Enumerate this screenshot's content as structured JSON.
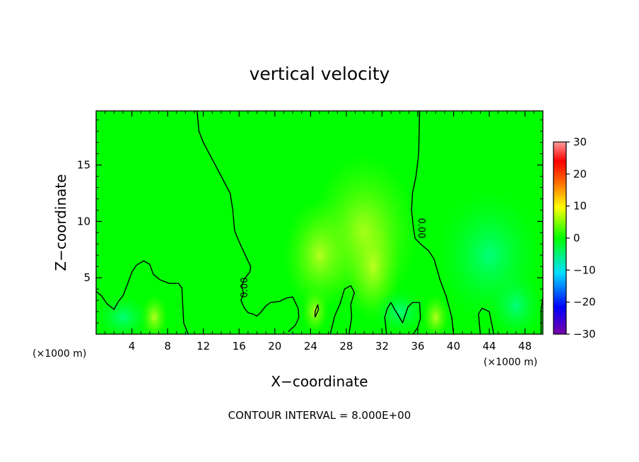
{
  "chart_data": {
    "type": "heatmap",
    "title": "vertical velocity",
    "xlabel": "X−coordinate",
    "ylabel": "Z−coordinate",
    "x_unit_left": "(×1000 m)",
    "x_unit_right": "(×1000 m)",
    "xlim": [
      0,
      50
    ],
    "ylim": [
      0,
      19.8
    ],
    "x_ticks": [
      4,
      8,
      12,
      16,
      20,
      24,
      28,
      32,
      36,
      40,
      44,
      48
    ],
    "y_ticks": [
      5,
      10,
      15
    ],
    "colorbar": {
      "range": [
        -30,
        30
      ],
      "ticks": [
        "30",
        "20",
        "10",
        "0",
        "−10",
        "−20",
        "−30"
      ],
      "colors": [
        "#7b00a8",
        "#0000ff",
        "#00e0ff",
        "#00ff00",
        "#ffff00",
        "#ff6000",
        "#ff0000",
        "#ff9090"
      ]
    },
    "background_color": "#00ff00",
    "contour_label": "0.00",
    "contour_interval_note": "CONTOUR INTERVAL = 8.000E+00",
    "contours": {
      "left_zero_line": [
        [
          11.3,
          19.8
        ],
        [
          11.5,
          18
        ],
        [
          12,
          17
        ],
        [
          13,
          15.5
        ],
        [
          14,
          14
        ],
        [
          15,
          12.5
        ],
        [
          15.3,
          11
        ],
        [
          15.4,
          10
        ],
        [
          15.5,
          9.2
        ],
        [
          16,
          8.2
        ],
        [
          16.7,
          7
        ],
        [
          17.3,
          6
        ],
        [
          17.2,
          5.5
        ],
        [
          16.5,
          4.8
        ],
        [
          16.3,
          4.2
        ],
        [
          16.5,
          3.6
        ],
        [
          16.2,
          3.0
        ],
        [
          16.6,
          2.3
        ],
        [
          17.0,
          1.9
        ],
        [
          17.5,
          1.8
        ],
        [
          18,
          1.6
        ],
        [
          18.5,
          2.0
        ],
        [
          19,
          2.5
        ],
        [
          19.5,
          2.8
        ],
        [
          20.5,
          2.9
        ],
        [
          21.3,
          3.2
        ],
        [
          22,
          3.3
        ],
        [
          22.6,
          2.3
        ],
        [
          22.7,
          1.5
        ],
        [
          22.3,
          0.8
        ],
        [
          21.5,
          0.2
        ]
      ],
      "right_zero_line": [
        [
          36.2,
          19.8
        ],
        [
          36.1,
          16
        ],
        [
          35.8,
          14
        ],
        [
          35.4,
          12.5
        ],
        [
          35.3,
          11
        ],
        [
          35.5,
          9.5
        ],
        [
          35.7,
          8.5
        ],
        [
          36.3,
          8
        ],
        [
          37.2,
          7.4
        ],
        [
          37.8,
          6.7
        ],
        [
          38.5,
          4.8
        ],
        [
          39.2,
          3.3
        ],
        [
          39.8,
          1.5
        ],
        [
          40,
          0
        ]
      ],
      "left_bottom_lobe": [
        [
          0,
          3.8
        ],
        [
          0.6,
          3.4
        ],
        [
          1.2,
          2.7
        ],
        [
          2,
          2.2
        ],
        [
          2.5,
          2.9
        ],
        [
          3.0,
          3.4
        ],
        [
          3.5,
          4.4
        ],
        [
          4.0,
          5.5
        ],
        [
          4.5,
          6.1
        ],
        [
          5.3,
          6.5
        ],
        [
          6.0,
          6.2
        ],
        [
          6.4,
          5.3
        ],
        [
          7.2,
          4.8
        ],
        [
          8.2,
          4.5
        ],
        [
          9.2,
          4.5
        ],
        [
          9.6,
          4.1
        ],
        [
          9.7,
          2.5
        ],
        [
          9.8,
          1.0
        ],
        [
          10.3,
          0
        ]
      ],
      "mid_bottom_lobe": [
        [
          28.3,
          0
        ],
        [
          28.6,
          1.5
        ],
        [
          28.5,
          2.6
        ],
        [
          28.9,
          3.7
        ],
        [
          28.5,
          4.3
        ],
        [
          27.8,
          4.0
        ],
        [
          27.3,
          2.7
        ],
        [
          26.7,
          1.6
        ],
        [
          26.2,
          0
        ]
      ],
      "right_bottom_lobe": [
        [
          32.5,
          0
        ],
        [
          32.3,
          1.5
        ],
        [
          32.6,
          2.3
        ],
        [
          33.0,
          2.8
        ],
        [
          33.4,
          2.2
        ],
        [
          33.8,
          1.7
        ],
        [
          34.3,
          1.0
        ],
        [
          34.9,
          2.4
        ],
        [
          35.4,
          2.8
        ],
        [
          36.2,
          2.8
        ],
        [
          36.3,
          1.4
        ],
        [
          36.0,
          0.6
        ],
        [
          35.5,
          0
        ]
      ],
      "right_small_lobe": [
        [
          43.0,
          0
        ],
        [
          42.8,
          1.8
        ],
        [
          43.2,
          2.3
        ],
        [
          44.0,
          2.0
        ],
        [
          44.3,
          0.8
        ],
        [
          44.5,
          0
        ]
      ],
      "right_edge": [
        [
          49.8,
          0
        ],
        [
          49.8,
          2.2
        ],
        [
          50,
          3.2
        ]
      ],
      "small_oval": [
        [
          24.5,
          1.5
        ],
        [
          24.9,
          2.2
        ],
        [
          24.8,
          2.6
        ],
        [
          24.5,
          2.0
        ],
        [
          24.5,
          1.5
        ]
      ]
    }
  }
}
